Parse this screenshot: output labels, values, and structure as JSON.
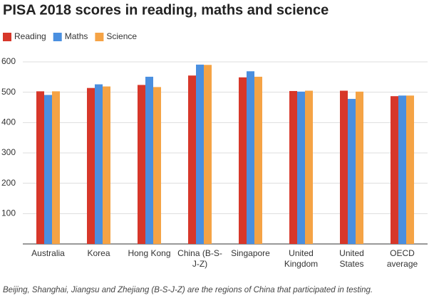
{
  "chart_data": {
    "type": "bar",
    "title": "PISA 2018 scores in reading, maths and science",
    "caption": "Beijing, Shanghai, Jiangsu and Zhejiang (B-S-J-Z) are the regions of China that participated in testing.",
    "categories": [
      "Australia",
      "Korea",
      "Hong Kong",
      "China (B-S-J-Z)",
      "Singapore",
      "United Kingdom",
      "United States",
      "OECD average"
    ],
    "series": [
      {
        "name": "Reading",
        "color": "#d7372a",
        "values": [
          503,
          514,
          524,
          555,
          549,
          504,
          505,
          487
        ]
      },
      {
        "name": "Maths",
        "color": "#4a8fe0",
        "values": [
          491,
          526,
          551,
          591,
          569,
          502,
          478,
          489
        ]
      },
      {
        "name": "Science",
        "color": "#f5a345",
        "values": [
          503,
          519,
          517,
          590,
          551,
          505,
          502,
          489
        ]
      }
    ],
    "ylim": [
      0,
      600
    ],
    "yticks": [
      100,
      200,
      300,
      400,
      500,
      600
    ],
    "grid": true
  }
}
